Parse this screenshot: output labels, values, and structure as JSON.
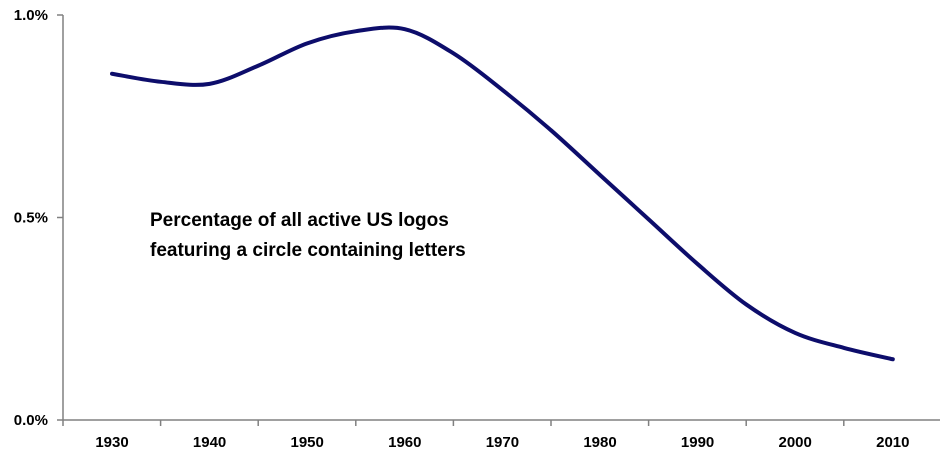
{
  "chart_data": {
    "type": "line",
    "title": "",
    "xlabel": "",
    "ylabel": "",
    "x": [
      1930,
      1940,
      1950,
      1960,
      1970,
      1980,
      1990,
      2000,
      2010
    ],
    "x_tick_labels": [
      "1930",
      "1940",
      "1950",
      "1960",
      "1970",
      "1980",
      "1990",
      "2000",
      "2010"
    ],
    "y_ticks": [
      0.0,
      0.5,
      1.0
    ],
    "y_tick_labels": [
      "0.0%",
      "0.5%",
      "1.0%"
    ],
    "ylim": [
      0.0,
      1.0
    ],
    "grid": false,
    "legend": "none",
    "smooth": true,
    "series": [
      {
        "color": "#0d0d6b",
        "points": [
          {
            "x": 1930,
            "y": 0.855
          },
          {
            "x": 1935,
            "y": 0.835
          },
          {
            "x": 1940,
            "y": 0.83
          },
          {
            "x": 1945,
            "y": 0.875
          },
          {
            "x": 1950,
            "y": 0.93
          },
          {
            "x": 1955,
            "y": 0.96
          },
          {
            "x": 1960,
            "y": 0.965
          },
          {
            "x": 1965,
            "y": 0.905
          },
          {
            "x": 1970,
            "y": 0.815
          },
          {
            "x": 1975,
            "y": 0.715
          },
          {
            "x": 1980,
            "y": 0.605
          },
          {
            "x": 1985,
            "y": 0.495
          },
          {
            "x": 1990,
            "y": 0.385
          },
          {
            "x": 1995,
            "y": 0.285
          },
          {
            "x": 2000,
            "y": 0.215
          },
          {
            "x": 2005,
            "y": 0.178
          },
          {
            "x": 2010,
            "y": 0.15
          }
        ]
      }
    ],
    "annotation": {
      "lines": [
        "Percentage of all active US logos",
        "featuring a circle containing letters"
      ]
    },
    "axis_color": "#808080"
  }
}
